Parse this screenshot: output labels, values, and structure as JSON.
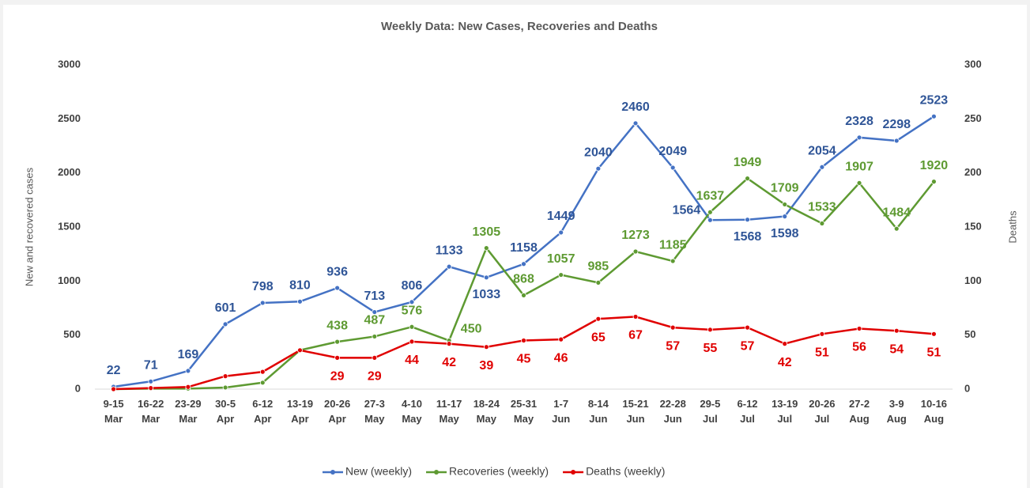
{
  "chart_data": {
    "type": "line",
    "title": "Weekly Data: New Cases, Recoveries and Deaths",
    "y_label": "New and recovered cases",
    "y2_label": "Deaths",
    "categories": [
      "9-15\nMar",
      "16-22\nMar",
      "23-29\nMar",
      "30-5\nApr",
      "6-12\nApr",
      "13-19\nApr",
      "20-26\nApr",
      "27-3\nMay",
      "4-10\nMay",
      "11-17\nMay",
      "18-24\nMay",
      "25-31\nMay",
      "1-7\nJun",
      "8-14\nJun",
      "15-21\nJun",
      "22-28\nJun",
      "29-5\nJul",
      "6-12\nJul",
      "13-19\nJul",
      "20-26\nJul",
      "27-2\nAug",
      "3-9\nAug",
      "10-16\nAug"
    ],
    "ylim": [
      0,
      3000
    ],
    "yticks": [
      0,
      500,
      1000,
      1500,
      2000,
      2500,
      3000
    ],
    "y2lim": [
      0,
      300
    ],
    "y2ticks": [
      0,
      50,
      100,
      150,
      200,
      250,
      300
    ],
    "legend": "bottom",
    "series": [
      {
        "name": "New (weekly)",
        "color": "#4472c4",
        "label_color": "#2f5597",
        "values": [
          22,
          71,
          169,
          601,
          798,
          810,
          936,
          713,
          806,
          1133,
          1033,
          1158,
          1449,
          2040,
          2460,
          2049,
          1564,
          1568,
          1598,
          2054,
          2328,
          2298,
          2523
        ]
      },
      {
        "name": "Recoveries (weekly)",
        "color": "#5e9a32",
        "label_color": "#5e9a32",
        "values": [
          0,
          5,
          5,
          15,
          60,
          360,
          438,
          487,
          576,
          450,
          1305,
          868,
          1057,
          985,
          1273,
          1185,
          1637,
          1949,
          1709,
          1533,
          1907,
          1484,
          1920
        ],
        "value_labels": [
          null,
          null,
          null,
          null,
          null,
          null,
          "438",
          "487",
          "576",
          "450",
          "1305",
          "868",
          "1057",
          "985",
          "1273",
          "1185",
          "1637",
          "1949",
          "1709",
          "1533",
          "1907",
          "1484",
          "1920"
        ]
      },
      {
        "name": "Deaths (weekly)",
        "color": "#e00000",
        "label_color": "#e00000",
        "axis": "y2",
        "values": [
          0,
          1,
          2,
          12,
          16,
          36,
          29,
          29,
          44,
          42,
          39,
          45,
          46,
          65,
          67,
          57,
          55,
          57,
          42,
          51,
          56,
          54,
          51
        ],
        "value_labels": [
          null,
          null,
          null,
          null,
          null,
          null,
          "29",
          "29",
          "44",
          "42",
          "39",
          "45",
          "46",
          "65",
          "67",
          "57",
          "55",
          "57",
          "42",
          "51",
          "56",
          "54",
          "51"
        ]
      }
    ]
  }
}
